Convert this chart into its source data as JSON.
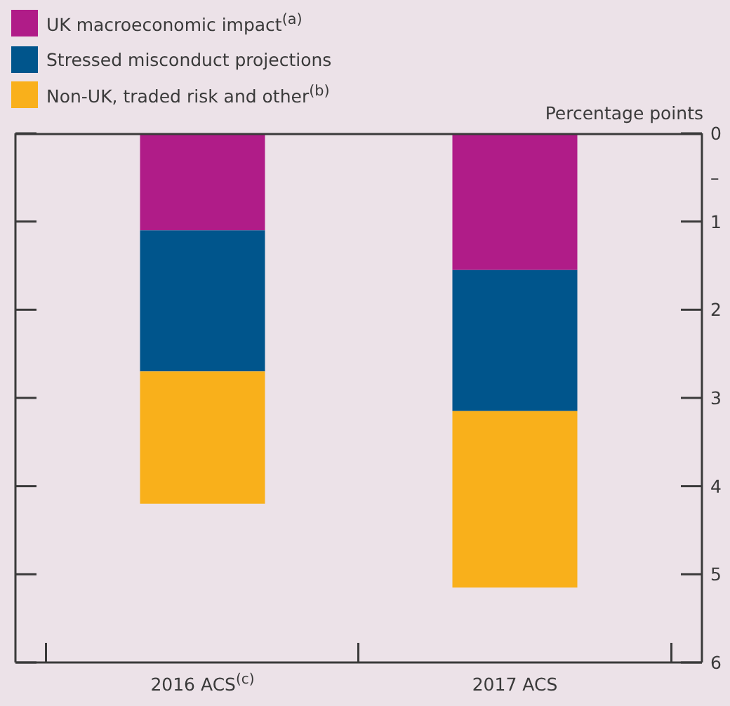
{
  "chart_data": {
    "type": "bar",
    "stacked": true,
    "categories": [
      "2016 ACS$^{(c)}$",
      "2017 ACS"
    ],
    "series": [
      {
        "name": "UK macroeconomic impact$^{(a)}$",
        "color": "#b01c88",
        "values": [
          1.1,
          1.55
        ]
      },
      {
        "name": "Stressed misconduct projections",
        "color": "#00558c",
        "values": [
          1.6,
          1.6
        ]
      },
      {
        "name": "Non-UK, traded risk and other$^{(b)}$",
        "color": "#f9b01b",
        "values": [
          1.5,
          2.0
        ]
      }
    ],
    "ylabel": "Percentage points",
    "ylim": [
      6,
      0
    ],
    "yticks": [
      0,
      {
        "value": 0.5,
        "label": "–"
      },
      1,
      2,
      3,
      4,
      5,
      6
    ],
    "legend": "top left"
  }
}
